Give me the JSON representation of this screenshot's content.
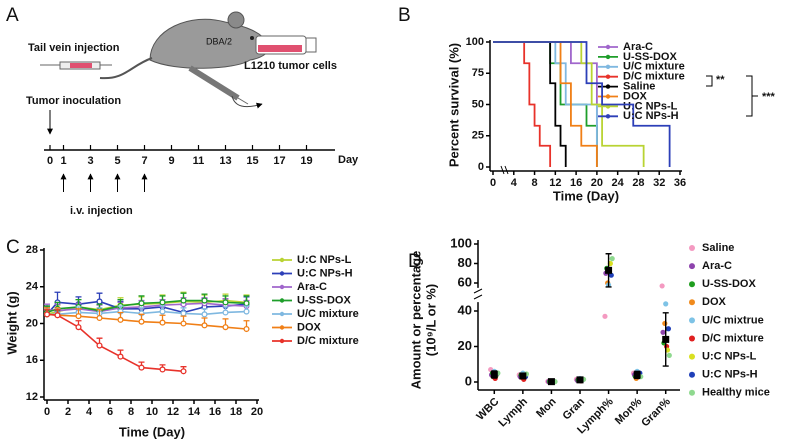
{
  "panel_a": {
    "label": "A",
    "tail_vein": "Tail vein injection",
    "strain": "DBA/2",
    "cells": "L1210 tumor cells",
    "inoculation": "Tumor inoculation",
    "injection": "i.v. injection",
    "timeline": {
      "days": [
        0,
        1,
        3,
        5,
        7,
        9,
        11,
        13,
        15,
        17,
        19
      ],
      "unit": "Day"
    }
  },
  "chart_data": [
    {
      "panel": "B",
      "type": "line",
      "step": true,
      "xlabel": "Time (Day)",
      "ylabel": "Percent survival (%)",
      "xlim": [
        0,
        36
      ],
      "xticks": [
        0,
        4,
        8,
        12,
        16,
        20,
        24,
        28,
        32,
        36
      ],
      "ylim": [
        0,
        100
      ],
      "yticks": [
        0,
        25,
        50,
        75,
        100
      ],
      "series": [
        {
          "name": "Ara-C",
          "color": "#a066cc",
          "x": [
            0,
            15,
            20
          ],
          "values": [
            100,
            83,
            0
          ]
        },
        {
          "name": "U-SS-DOX",
          "color": "#1e9e2a",
          "x": [
            0,
            11,
            13,
            18,
            20
          ],
          "values": [
            100,
            83,
            50,
            33,
            0
          ]
        },
        {
          "name": "U/C mixture",
          "color": "#7fb8e0",
          "x": [
            0,
            12,
            14,
            20
          ],
          "values": [
            100,
            83,
            50,
            0
          ]
        },
        {
          "name": "D/C mixture",
          "color": "#e8322a",
          "x": [
            0,
            6,
            7,
            8,
            9,
            11
          ],
          "values": [
            100,
            83,
            50,
            33,
            17,
            0
          ]
        },
        {
          "name": "Saline",
          "color": "#000000",
          "x": [
            0,
            11,
            12,
            13,
            14
          ],
          "values": [
            100,
            67,
            33,
            17,
            0
          ]
        },
        {
          "name": "DOX",
          "color": "#f07f16",
          "x": [
            0,
            13,
            15,
            17,
            20
          ],
          "values": [
            100,
            67,
            33,
            17,
            0
          ]
        },
        {
          "name": "U:C NPs-L",
          "color": "#b9d333",
          "x": [
            0,
            17,
            19,
            21,
            29
          ],
          "values": [
            100,
            83,
            50,
            17,
            0
          ]
        },
        {
          "name": "U:C NPs-H",
          "color": "#2c3fb8",
          "x": [
            0,
            18,
            21,
            27,
            34
          ],
          "values": [
            100,
            67,
            50,
            33,
            0
          ]
        }
      ],
      "annotations": [
        "**",
        "***"
      ]
    },
    {
      "panel": "C",
      "type": "line",
      "xlabel": "Time (Day)",
      "ylabel": "Weight (g)",
      "xlim": [
        0,
        20
      ],
      "xticks": [
        0,
        2,
        4,
        6,
        8,
        10,
        12,
        14,
        16,
        18,
        20
      ],
      "ylim": [
        12,
        28
      ],
      "yticks": [
        12,
        16,
        20,
        24,
        28
      ],
      "x": [
        0,
        1,
        3,
        5,
        7,
        9,
        11,
        13,
        15,
        17,
        19
      ],
      "series": [
        {
          "name": "U:C NPs-L",
          "color": "#b9d333",
          "values": [
            21,
            21.3,
            21.8,
            21.5,
            22,
            22.1,
            22.2,
            22.4,
            22.3,
            22.5,
            22.3
          ],
          "errors": [
            0.8,
            0.7,
            0.8,
            0.9,
            0.8,
            0.8,
            0.9,
            1,
            0.8,
            0.7,
            0.8
          ]
        },
        {
          "name": "U:C NPs-H",
          "color": "#2c3fb8",
          "values": [
            21,
            22.3,
            22.1,
            22.4,
            21.6,
            21.6,
            21.8,
            21.2,
            21.8,
            21.9,
            22.1
          ],
          "errors": [
            0.9,
            1.1,
            0.8,
            0.9,
            0.8,
            0.7,
            0.8,
            0.8,
            0.9,
            0.8,
            0.8
          ]
        },
        {
          "name": "Ara-C",
          "color": "#a066cc",
          "values": [
            21.5,
            21.4,
            21.6,
            21.3,
            21.7,
            21.8,
            22,
            22.1,
            22.2,
            22,
            21.9
          ],
          "errors": [
            0.6,
            0.7,
            0.6,
            0.7,
            0.6,
            0.7,
            0.6,
            0.7,
            0.6,
            0.7,
            0.6
          ]
        },
        {
          "name": "U-SS-DOX",
          "color": "#1e9e2a",
          "values": [
            21.2,
            21.6,
            21.8,
            21.4,
            21.9,
            22.2,
            22.3,
            22.5,
            22.5,
            22.3,
            22.2
          ],
          "errors": [
            0.7,
            0.7,
            0.8,
            0.7,
            0.7,
            0.8,
            0.7,
            0.8,
            0.7,
            0.7,
            0.8
          ]
        },
        {
          "name": "U/C mixture",
          "color": "#7fb8e0",
          "values": [
            21,
            21,
            21.2,
            21.1,
            21.3,
            21.1,
            21.3,
            21.1,
            21,
            21.2,
            21.3
          ],
          "errors": [
            0.6,
            0.6,
            0.6,
            0.6,
            0.6,
            0.6,
            0.6,
            0.6,
            0.6,
            0.6,
            0.6
          ]
        },
        {
          "name": "DOX",
          "color": "#f07f16",
          "values": [
            21,
            20.9,
            20.8,
            20.6,
            20.4,
            20.2,
            20.1,
            20,
            19.8,
            19.6,
            19.4
          ],
          "errors": [
            0.7,
            0.8,
            0.8,
            0.9,
            0.8,
            0.8,
            0.8,
            0.8,
            0.8,
            0.9,
            0.9
          ]
        },
        {
          "name": "D/C mixture",
          "color": "#e8322a",
          "values": [
            21,
            20.9,
            19.6,
            17.6,
            16.4,
            15.2,
            15,
            14.8,
            null,
            null,
            null
          ],
          "errors": [
            0.5,
            0.6,
            0.7,
            0.8,
            0.7,
            0.6,
            0.5,
            0.5,
            null,
            null,
            null
          ]
        }
      ]
    },
    {
      "panel": "D",
      "type": "scatter",
      "ylabel": [
        "Amount or  percentage",
        "(10⁹/L or %)"
      ],
      "categories": [
        "WBC",
        "Lymph",
        "Mon",
        "Gran",
        "Lymph%",
        "Mon%",
        "Gran%"
      ],
      "segments": [
        {
          "ylim": [
            -5,
            45
          ],
          "yticks": [
            0,
            20,
            40
          ]
        },
        {
          "ylim": [
            55,
            100
          ],
          "yticks": [
            60,
            80,
            100
          ]
        }
      ],
      "series": [
        {
          "name": "Saline",
          "color": "#f49ac1",
          "values": [
            7,
            4,
            0.3,
            1.5,
            37,
            5,
            57
          ]
        },
        {
          "name": "Ara-C",
          "color": "#8e44ad",
          "values": [
            4,
            3,
            0.2,
            1,
            70,
            4,
            28
          ]
        },
        {
          "name": "U-SS-DOX",
          "color": "#1f9e1f",
          "values": [
            5,
            4,
            0.2,
            1.2,
            75,
            3,
            22
          ]
        },
        {
          "name": "DOX",
          "color": "#f08a1c",
          "values": [
            3,
            2.5,
            0.1,
            0.8,
            60,
            2,
            33
          ]
        },
        {
          "name": "U/C mixtrue",
          "color": "#7ec3e6",
          "values": [
            6,
            5,
            0.4,
            2,
            58,
            6,
            44
          ]
        },
        {
          "name": "D/C mixture",
          "color": "#e02020",
          "values": [
            2,
            1.5,
            0.1,
            0.6,
            72,
            3,
            20
          ]
        },
        {
          "name": "U:C NPs-L",
          "color": "#d9e021",
          "values": [
            3.5,
            3.5,
            0.2,
            1,
            80,
            4,
            18
          ]
        },
        {
          "name": "U:C NPs-H",
          "color": "#1f3fb8",
          "values": [
            4.5,
            3,
            0.3,
            1.3,
            68,
            5,
            30
          ]
        },
        {
          "name": "Healthy mice",
          "color": "#8fd98f",
          "values": [
            5,
            4.5,
            0.2,
            1.5,
            85,
            3,
            15
          ]
        }
      ],
      "summary": {
        "color": "#000000",
        "values": [
          4.2,
          3.4,
          0.2,
          1.2,
          73,
          4,
          24
        ],
        "errors": [
          2,
          1.5,
          0.2,
          0.8,
          17,
          2,
          15
        ]
      }
    }
  ]
}
